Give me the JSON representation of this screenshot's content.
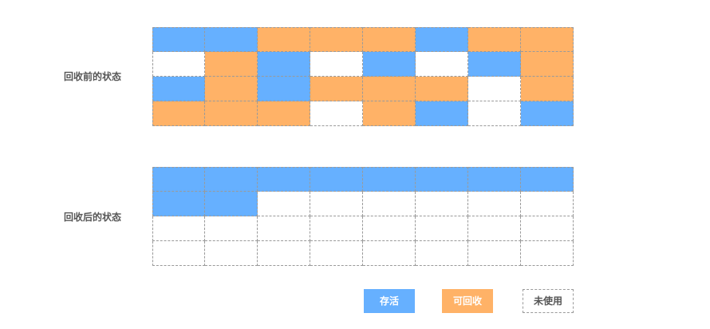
{
  "colors": {
    "alive": "#66b0ff",
    "reclaimable": "#ffb267",
    "unused": "#ffffff"
  },
  "before": {
    "label": "回收前的状态",
    "cells": [
      [
        "alive",
        "alive",
        "reclaimable",
        "reclaimable",
        "reclaimable",
        "alive",
        "reclaimable",
        "reclaimable"
      ],
      [
        "unused",
        "reclaimable",
        "alive",
        "unused",
        "alive",
        "unused",
        "alive",
        "reclaimable"
      ],
      [
        "alive",
        "reclaimable",
        "alive",
        "reclaimable",
        "reclaimable",
        "reclaimable",
        "unused",
        "reclaimable"
      ],
      [
        "reclaimable",
        "reclaimable",
        "reclaimable",
        "unused",
        "reclaimable",
        "alive",
        "unused",
        "alive"
      ]
    ]
  },
  "after": {
    "label": "回收后的状态",
    "cells": [
      [
        "alive",
        "alive",
        "alive",
        "alive",
        "alive",
        "alive",
        "alive",
        "alive"
      ],
      [
        "alive",
        "alive",
        "unused",
        "unused",
        "unused",
        "unused",
        "unused",
        "unused"
      ],
      [
        "unused",
        "unused",
        "unused",
        "unused",
        "unused",
        "unused",
        "unused",
        "unused"
      ],
      [
        "unused",
        "unused",
        "unused",
        "unused",
        "unused",
        "unused",
        "unused",
        "unused"
      ]
    ]
  },
  "legend": {
    "alive": "存活",
    "reclaimable": "可回收",
    "unused": "未使用"
  }
}
